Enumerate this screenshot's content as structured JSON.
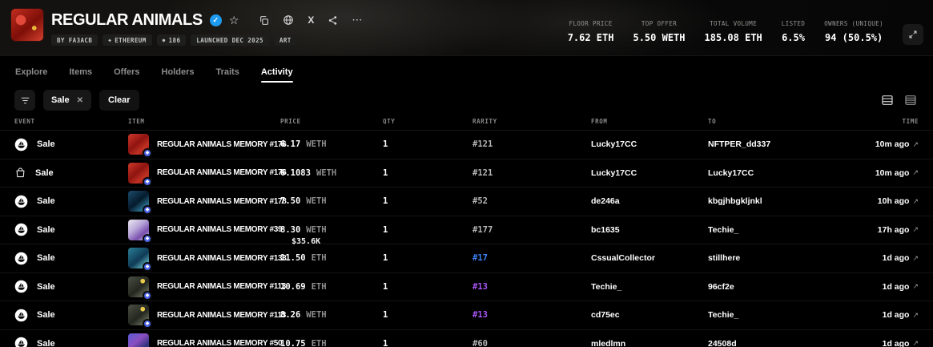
{
  "header": {
    "title": "REGULAR ANIMALS",
    "avatar_bg": "radial-gradient(circle at 30% 35%, #e3493a 0%, #e3493a 16%, rgba(0,0,0,0) 17%), radial-gradient(circle at 72% 60%, #e8b83a 0%, #e8b83a 7%, rgba(0,0,0,0) 8%), linear-gradient(140deg, #c22d1f 0%, #7e0f08 55%, #d4402e 100%)",
    "badges": [
      {
        "label": "BY FA3ACB",
        "icon": ""
      },
      {
        "label": "ETHEREUM",
        "icon": "eth-diamond"
      },
      {
        "label": "186",
        "icon": "supply-dot"
      },
      {
        "label": "LAUNCHED DEC 2025",
        "icon": ""
      },
      {
        "label": "ART",
        "icon": ""
      }
    ],
    "stats": [
      {
        "label": "FLOOR PRICE",
        "value": "7.62 ETH"
      },
      {
        "label": "TOP OFFER",
        "value": "5.50 WETH"
      },
      {
        "label": "TOTAL VOLUME",
        "value": "185.08 ETH"
      },
      {
        "label": "LISTED",
        "value": "6.5%"
      },
      {
        "label": "OWNERS (UNIQUE)",
        "value": "94 (50.5%)"
      }
    ]
  },
  "icons": {
    "verified_check": "✓",
    "star": "☆",
    "more": "⋯",
    "close": "✕",
    "external_arrow": "↗",
    "x_logo": "X",
    "eth_diamond": "◆",
    "supply_dot": "●"
  },
  "tabs": {
    "active": "Activity",
    "items": [
      {
        "label": "Explore"
      },
      {
        "label": "Items"
      },
      {
        "label": "Offers"
      },
      {
        "label": "Holders"
      },
      {
        "label": "Traits"
      },
      {
        "label": "Activity"
      }
    ]
  },
  "filters": {
    "chip_label": "Sale",
    "clear_label": "Clear"
  },
  "table": {
    "headers": [
      "EVENT",
      "ITEM",
      "PRICE",
      "QTY",
      "RARITY",
      "FROM",
      "TO",
      "TIME"
    ],
    "rows": [
      {
        "event": "Sale",
        "event_icon": "opensea-logo",
        "item": "REGULAR ANIMALS MEMORY #176",
        "price_value": "6.17",
        "price_currency": "WETH",
        "price_usd": "",
        "qty": "1",
        "rarity": "#121",
        "rarity_color": "#b5b5b5",
        "from": "Lucky17CC",
        "to": "NFTPER_dd337",
        "time": "10m ago",
        "thumb_bg": "linear-gradient(140deg, #d0392b 0%, #8f1410 45%, #c03224 72%, #6f0d08 100%)"
      },
      {
        "event": "Sale",
        "event_icon": "shopping-bag",
        "item": "REGULAR ANIMALS MEMORY #176",
        "price_value": "6.1083",
        "price_currency": "WETH",
        "price_usd": "",
        "qty": "1",
        "rarity": "#121",
        "rarity_color": "#b5b5b5",
        "from": "Lucky17CC",
        "to": "Lucky17CC",
        "time": "10m ago",
        "thumb_bg": "linear-gradient(140deg, #d0392b 0%, #8f1410 45%, #c03224 72%, #6f0d08 100%)"
      },
      {
        "event": "Sale",
        "event_icon": "opensea-logo",
        "item": "REGULAR ANIMALS MEMORY #178",
        "price_value": "7.50",
        "price_currency": "WETH",
        "price_usd": "",
        "qty": "1",
        "rarity": "#52",
        "rarity_color": "#b5b5b5",
        "from": "de246a",
        "to": "kbgjhbgkljnkl",
        "time": "10h ago",
        "thumb_bg": "linear-gradient(140deg, #1a4d6e 0%, #061a2c 50%, #2f7fa0 85%, #0c2b44 100%)"
      },
      {
        "event": "Sale",
        "event_icon": "opensea-logo",
        "item": "REGULAR ANIMALS MEMORY #39",
        "price_value": "8.30",
        "price_currency": "WETH",
        "price_usd": "$35.6K",
        "qty": "1",
        "rarity": "#177",
        "rarity_color": "#b5b5b5",
        "from": "bc1635",
        "to": "Techie_",
        "time": "17h ago",
        "thumb_bg": "linear-gradient(140deg, #ece9f2 0%, #b9a7d8 40%, #7a4fae 70%, #d8d4e4 100%)"
      },
      {
        "event": "Sale",
        "event_icon": "opensea-logo",
        "item": "REGULAR ANIMALS MEMORY #133",
        "price_value": "11.50",
        "price_currency": "ETH",
        "price_usd": "",
        "qty": "1",
        "rarity": "#17",
        "rarity_color": "#3b82f6",
        "from": "CssualCollector",
        "to": "stillhere",
        "time": "1d ago",
        "thumb_bg": "linear-gradient(140deg, #2a7f96 0%, #0f3a55 55%, #67c1c9 90%)"
      },
      {
        "event": "Sale",
        "event_icon": "opensea-logo",
        "item": "REGULAR ANIMALS MEMORY #113",
        "price_value": "10.69",
        "price_currency": "ETH",
        "price_usd": "",
        "qty": "1",
        "rarity": "#13",
        "rarity_color": "#a855f7",
        "from": "Techie_",
        "to": "96cf2e",
        "time": "1d ago",
        "thumb_bg": "radial-gradient(circle at 70% 22%, #e8c84a 0%, #e8c84a 10%, rgba(0,0,0,0) 11%), linear-gradient(140deg, #4a4f44 0%, #23271f 55%, #6b705e 90%)"
      },
      {
        "event": "Sale",
        "event_icon": "opensea-logo",
        "item": "REGULAR ANIMALS MEMORY #113",
        "price_value": "8.26",
        "price_currency": "WETH",
        "price_usd": "",
        "qty": "1",
        "rarity": "#13",
        "rarity_color": "#a855f7",
        "from": "cd75ec",
        "to": "Techie_",
        "time": "1d ago",
        "thumb_bg": "radial-gradient(circle at 70% 22%, #e8c84a 0%, #e8c84a 10%, rgba(0,0,0,0) 11%), linear-gradient(140deg, #4a4f44 0%, #23271f 55%, #6b705e 90%)"
      },
      {
        "event": "Sale",
        "event_icon": "opensea-logo",
        "item": "REGULAR ANIMALS MEMORY #50",
        "price_value": "10.75",
        "price_currency": "ETH",
        "price_usd": "",
        "qty": "1",
        "rarity": "#60",
        "rarity_color": "#b5b5b5",
        "from": "mledlmn",
        "to": "24508d",
        "time": "1d ago",
        "thumb_bg": "linear-gradient(140deg, #5a5bd8 0%, #8a4fc0 40%, #2a2f7a 75%, #c06ad0 100%)"
      }
    ]
  },
  "colors": {
    "verified_blue": "#1d9bf0",
    "eth_badge_blue": "#4a63e7",
    "rarity_blue": "#3b82f6",
    "rarity_purple": "#a855f7"
  }
}
